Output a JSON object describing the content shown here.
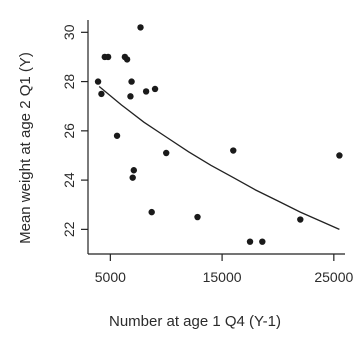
{
  "chart_data": {
    "type": "scatter",
    "xlabel": "Number at age 1 Q4 (Y-1)",
    "ylabel": "Mean weight at age 2 Q1 (Y)",
    "xlim": [
      3000,
      26000
    ],
    "ylim": [
      21,
      30.5
    ],
    "x_ticks": [
      5000,
      15000,
      25000
    ],
    "x_tick_labels": [
      "5000",
      "15000",
      "25000"
    ],
    "y_ticks": [
      22,
      24,
      26,
      28,
      30
    ],
    "y_tick_labels": [
      "22",
      "24",
      "26",
      "28",
      "30"
    ],
    "points": [
      {
        "x": 3900,
        "y": 28.0
      },
      {
        "x": 4200,
        "y": 27.5
      },
      {
        "x": 4500,
        "y": 29.0
      },
      {
        "x": 4800,
        "y": 29.0
      },
      {
        "x": 5600,
        "y": 25.8
      },
      {
        "x": 6300,
        "y": 29.0
      },
      {
        "x": 6500,
        "y": 28.9
      },
      {
        "x": 6800,
        "y": 27.4
      },
      {
        "x": 6900,
        "y": 28.0
      },
      {
        "x": 7000,
        "y": 24.1
      },
      {
        "x": 7100,
        "y": 24.4
      },
      {
        "x": 7700,
        "y": 30.2
      },
      {
        "x": 8200,
        "y": 27.6
      },
      {
        "x": 8700,
        "y": 22.7
      },
      {
        "x": 9000,
        "y": 27.7
      },
      {
        "x": 10000,
        "y": 25.1
      },
      {
        "x": 12800,
        "y": 22.5
      },
      {
        "x": 16000,
        "y": 25.2
      },
      {
        "x": 17500,
        "y": 21.5
      },
      {
        "x": 18600,
        "y": 21.5
      },
      {
        "x": 22000,
        "y": 22.4
      },
      {
        "x": 25500,
        "y": 25.0
      }
    ],
    "fit_curve": [
      {
        "x": 4000,
        "y": 27.8
      },
      {
        "x": 6000,
        "y": 27.05
      },
      {
        "x": 8000,
        "y": 26.35
      },
      {
        "x": 10000,
        "y": 25.75
      },
      {
        "x": 12000,
        "y": 25.15
      },
      {
        "x": 14000,
        "y": 24.6
      },
      {
        "x": 16000,
        "y": 24.1
      },
      {
        "x": 18000,
        "y": 23.6
      },
      {
        "x": 20000,
        "y": 23.15
      },
      {
        "x": 22000,
        "y": 22.7
      },
      {
        "x": 24000,
        "y": 22.3
      },
      {
        "x": 25500,
        "y": 22.0
      }
    ],
    "grid": false,
    "legend": "none"
  }
}
